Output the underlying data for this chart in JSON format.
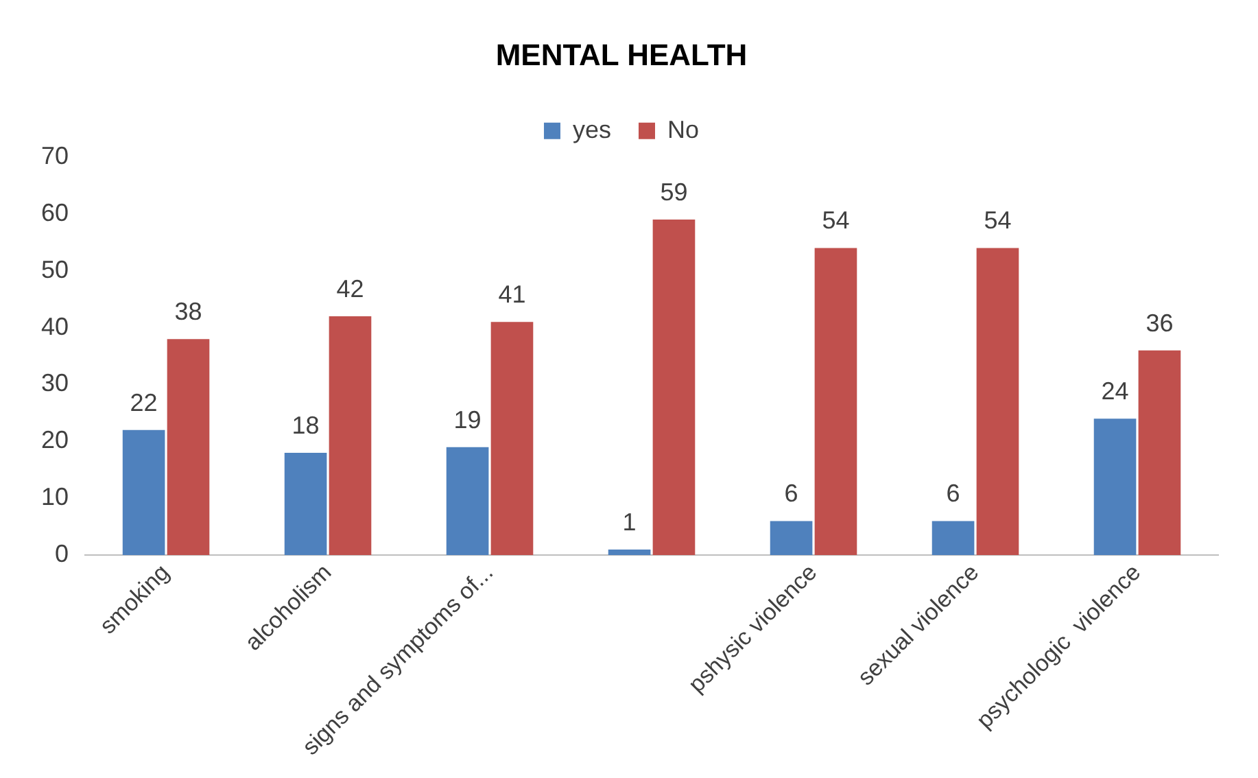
{
  "chart_data": {
    "type": "bar",
    "title": "MENTAL HEALTH",
    "categories": [
      "smoking",
      "alcoholism",
      "signs and symptoms of...",
      null,
      "pshysic violence",
      "sexual violence",
      "psychologic  violence"
    ],
    "series": [
      {
        "name": "yes",
        "color": "#4f81bd",
        "values": [
          22,
          18,
          19,
          1,
          6,
          6,
          24
        ]
      },
      {
        "name": "No",
        "color": "#c0504d",
        "values": [
          38,
          42,
          41,
          59,
          54,
          54,
          36
        ]
      }
    ],
    "ylim": [
      0,
      70
    ],
    "yticks": [
      0,
      10,
      20,
      30,
      40,
      50,
      60,
      70
    ],
    "grid": false,
    "legend": "top",
    "data_labels": true
  }
}
